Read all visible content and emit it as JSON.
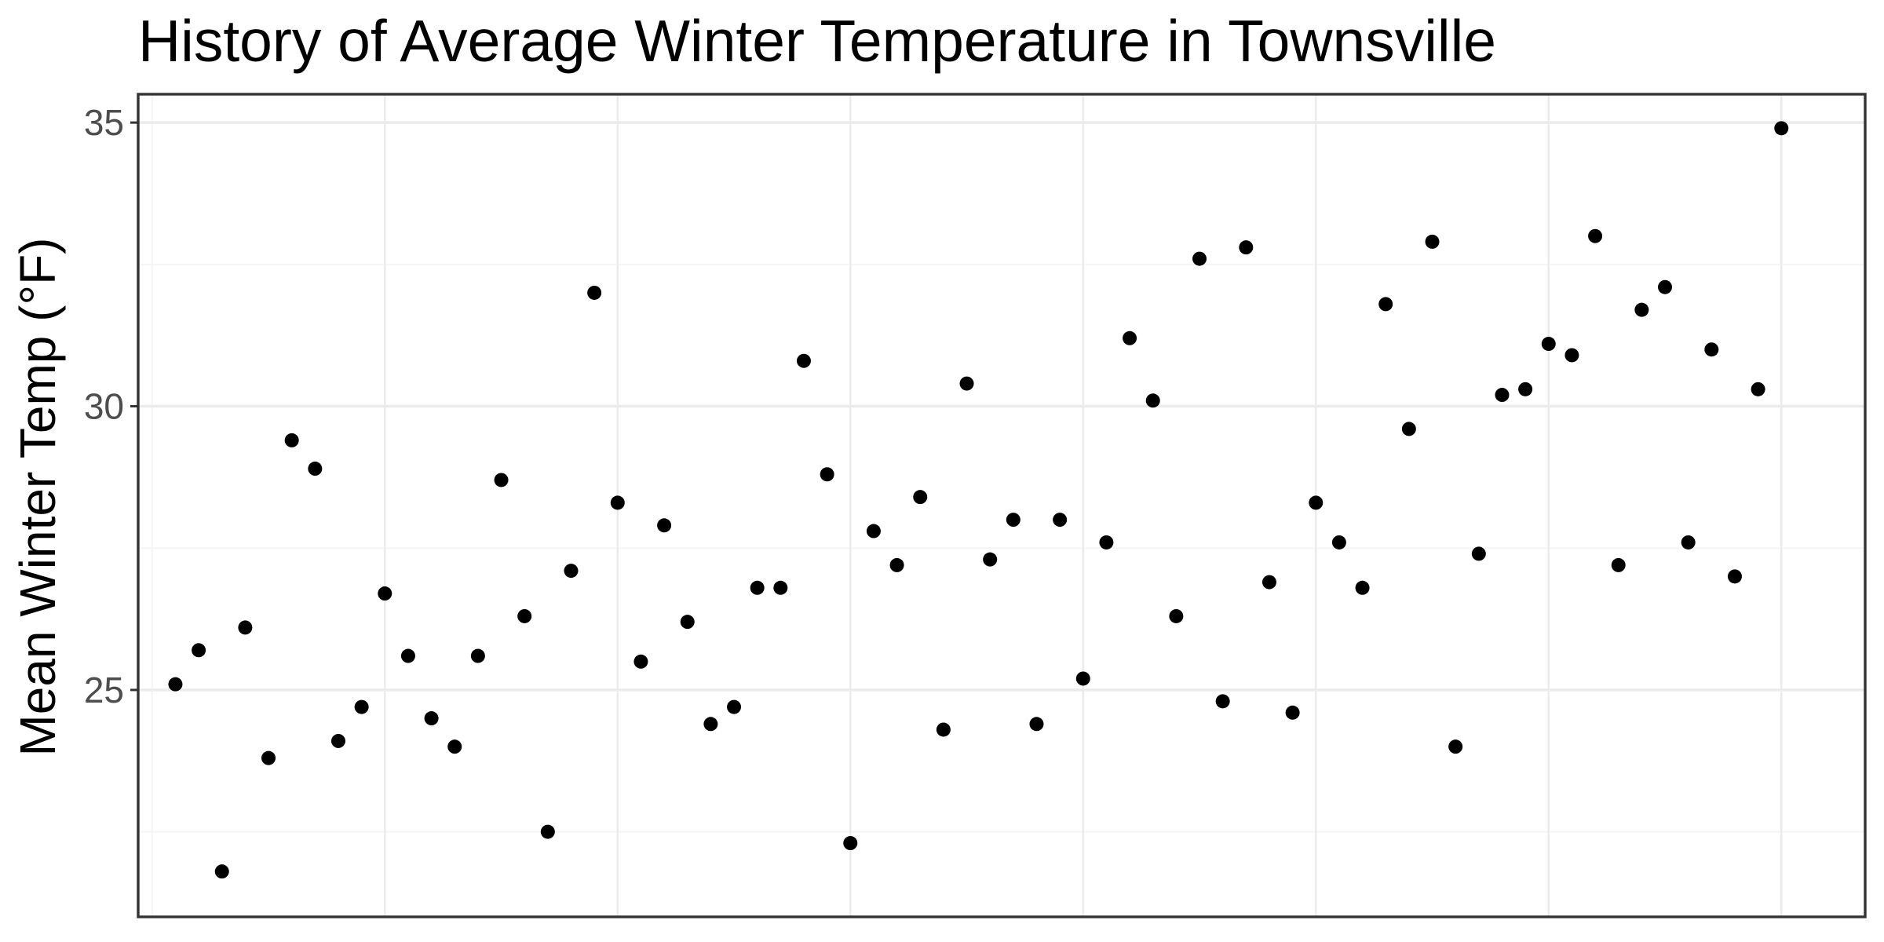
{
  "chart_data": {
    "type": "scatter",
    "title": "History of Average Winter Temperature in Townsville",
    "xlabel": "",
    "ylabel": "Mean Winter Temp (°F)",
    "xlim": [
      -0.6,
      73.6
    ],
    "ylim": [
      21.0,
      35.5
    ],
    "y_major_ticks": [
      25,
      30,
      35
    ],
    "y_tick_labels": [
      "25",
      "30",
      "35"
    ],
    "y_minor_ticks": [
      22.5,
      27.5,
      32.5
    ],
    "x_major_ticks": [
      10,
      20,
      30,
      40,
      50,
      60,
      70
    ],
    "x_minor_ticks": [
      0
    ],
    "grid": true,
    "legend": "none",
    "colors": {
      "point": "#000000",
      "panel_border": "#333333",
      "grid_major": "#ebebeb",
      "grid_minor": "#f5f5f5",
      "tick": "#333333"
    },
    "points": {
      "x": [
        1,
        2,
        3,
        4,
        5,
        6,
        7,
        8,
        9,
        10,
        11,
        12,
        13,
        14,
        15,
        16,
        17,
        18,
        19,
        20,
        21,
        22,
        23,
        24,
        25,
        26,
        27,
        28,
        29,
        30,
        31,
        32,
        33,
        34,
        35,
        36,
        37,
        38,
        39,
        40,
        41,
        42,
        43,
        44,
        45,
        46,
        47,
        48,
        49,
        50,
        51,
        52,
        53,
        54,
        55,
        56,
        57,
        58,
        59,
        60,
        61,
        62,
        63,
        64,
        65,
        66,
        67,
        68,
        69,
        70
      ],
      "y": [
        25.1,
        25.7,
        21.8,
        26.1,
        23.8,
        29.4,
        28.9,
        24.1,
        24.7,
        26.7,
        25.6,
        24.5,
        24.0,
        25.6,
        28.7,
        26.3,
        22.5,
        27.1,
        32.0,
        28.3,
        25.5,
        27.9,
        26.2,
        24.4,
        24.7,
        26.8,
        26.8,
        30.8,
        28.8,
        22.3,
        27.8,
        27.2,
        28.4,
        24.3,
        30.4,
        27.3,
        28.0,
        24.4,
        28.0,
        25.2,
        27.6,
        31.2,
        30.1,
        26.3,
        32.6,
        24.8,
        32.8,
        26.9,
        24.6,
        28.3,
        27.6,
        26.8,
        31.8,
        29.6,
        32.9,
        24.0,
        27.4,
        30.2,
        30.3,
        31.1,
        30.9,
        33.0,
        27.2,
        31.7,
        32.1,
        27.6,
        31.0,
        27.0,
        30.3,
        34.9
      ]
    }
  }
}
